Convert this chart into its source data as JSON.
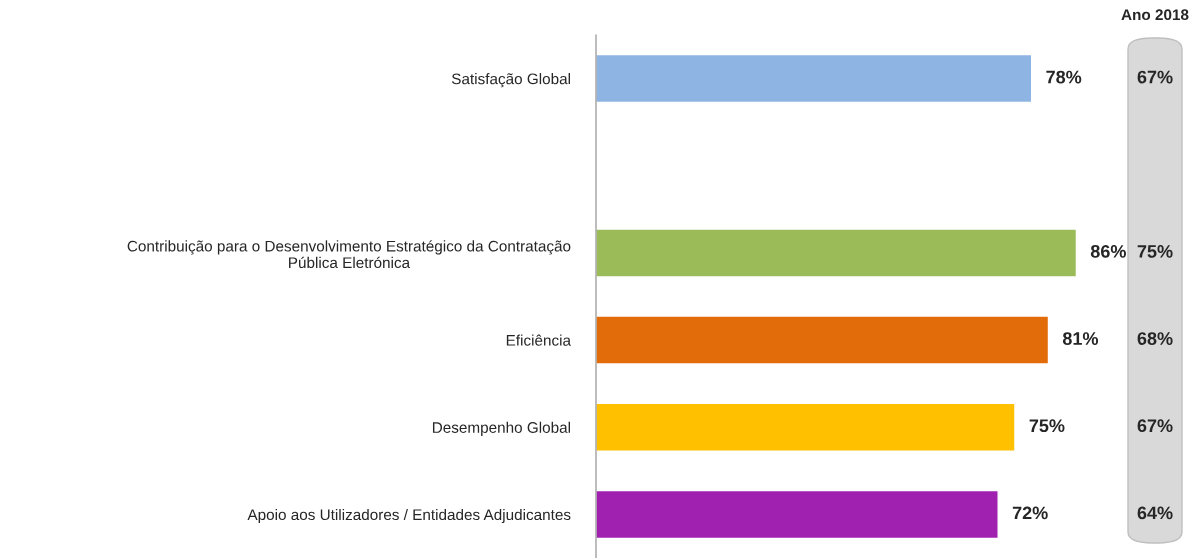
{
  "chart_data": {
    "type": "bar",
    "orientation": "horizontal",
    "categories": [
      "Satisfação Global",
      null,
      "Contribuição para o Desenvolvimento Estratégico da Contratação\nPública Eletrónica",
      "Eficiência",
      "Desempenho Global",
      "Apoio aos Utilizadores / Entidades Adjudicantes"
    ],
    "values": [
      78,
      null,
      86,
      81,
      75,
      72
    ],
    "colors": [
      "#8eb4e3",
      "#8eb4e3",
      "#9bbb59",
      "#e36c0a",
      "#ffc000",
      "#a020b0"
    ],
    "value_labels": [
      "78%",
      null,
      "86%",
      "81%",
      "75%",
      "72%"
    ],
    "tick_labels": "y",
    "grid": false,
    "legend": false,
    "annotations": [
      "Ano 2018",
      "67%",
      "75%",
      "68%",
      "67%",
      "64%"
    ]
  }
}
